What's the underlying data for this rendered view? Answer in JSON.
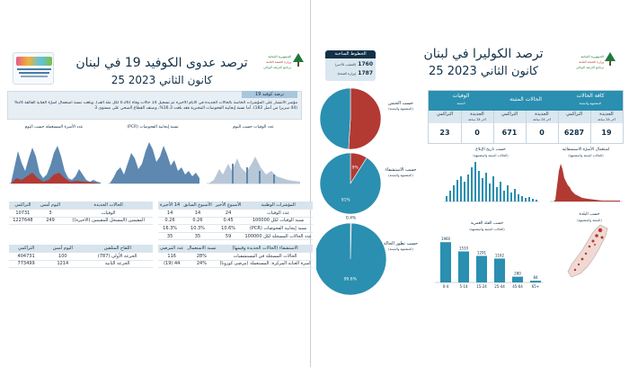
{
  "left": {
    "title": "ترصد عدوى الكوفيد 19 في لبنان",
    "date": "25 كانون الثاني 2023",
    "logo": {
      "line1": "الجمهورية اللبنانية",
      "line2": "وزارة الصحة العامة",
      "line3": "برنامج الترصد الوبائي"
    },
    "section_label": "ترصد كوفيد 19",
    "summary_text": "مؤشر الانتشار على المؤشرات الخاصة بالحالات الجديدة في الأيام الأخيرة تم تسجيل 14 حالات وفاة (0.26 لكل مئة ألف). وبلغت نسبة استعمال اسرّة العناية الفائقة 24% (44 سريرا من أصل 182). أما نسبة إيجابية الفحوصات المخبرية فقد بلغت 16.3%، وصنف القطاع الصحي على مستوى 3",
    "chart_titles": [
      "عدد الأسرة المستعملة حسب اليوم",
      "نسبة إيجابية الفحوصات (PCR)",
      "عدد الوفيات حسب اليوم"
    ],
    "table1": {
      "headers": [
        "المؤشرات الوطنية",
        "الأسبوع الأخير",
        "الأسبوع السابق",
        "14 الأخيرة"
      ],
      "rows": [
        [
          "عدد الوفيات",
          "24",
          "14",
          "14"
        ],
        [
          "نسبة الوفيات لكل 100000",
          "0.45",
          "0.26",
          "0.26"
        ],
        [
          "نسبة إيجابية الفحوصات (PCR)",
          "10.6%",
          "10.3%",
          "16.3%"
        ],
        [
          "عدد الحالات المسجلة لكل 100000",
          "59",
          "35",
          "35"
        ]
      ]
    },
    "table2": {
      "headers": [
        "الاستشفاء (الحالات الجديدة وقيمها)",
        "نسبة الاستعمال",
        "عدد المرضى"
      ],
      "rows": [
        [
          "الحالات المسجلة في المستشفيات",
          "28%",
          "116"
        ],
        [
          "أسرة العناية المركزة: المستعملة (مرضى كورونا)",
          "24%",
          "44 (19)"
        ]
      ]
    },
    "table3": {
      "headers": [
        "الحالات الجديدة",
        "اليوم أمس",
        "التراكمي"
      ],
      "rows": [
        [
          "الوفيات",
          "3",
          "10731"
        ],
        [
          "المقيمين (المسجل للمقيمين (الأخيرة))",
          "249",
          "1227648"
        ]
      ]
    },
    "table4": {
      "headers": [
        "اللقاح المتلقين",
        "اليوم أمس",
        "التراكمي"
      ],
      "rows": [
        [
          "الجرعة الأولى (787)",
          "100",
          "404731"
        ],
        [
          "الجرعة الثانية",
          "1214",
          "773499"
        ]
      ]
    }
  },
  "right": {
    "title": "ترصد الكوليرا في لبنان",
    "date": "25 كانون الثاني 2023",
    "logo": {
      "line1": "الجمهورية اللبنانية",
      "line2": "وزارة الصحة العامة",
      "line3": "برنامج الترصد الوبائي"
    },
    "hotline": {
      "title": "الخطوط الساخنة",
      "rows": [
        {
          "number": "1760",
          "label": "(الصليب الأحمر)"
        },
        {
          "number": "1787",
          "label": "(وزارة الصحة)"
        }
      ]
    },
    "kpi_headers": [
      "كافة الحالات",
      "الحالات المثبتة",
      "الوفيات"
    ],
    "kpi_subheaders": [
      "المشتبهة والمثبتة",
      "",
      "المثبتة"
    ],
    "kpi_labels": [
      "الجديدة",
      "التراكمي"
    ],
    "kpi_sublabels": [
      "آخر 24 ساعة",
      "",
      "آخر 24 ساعة",
      "",
      "آخر 24 ساعة",
      ""
    ],
    "kpi_values": [
      "19",
      "6287",
      "0",
      "671",
      "0",
      "23"
    ],
    "pies": [
      {
        "label": "حسب الجنس",
        "sublabel": "(المشتبهة والمثبتة)",
        "labels": [
          "",
          ""
        ]
      },
      {
        "label": "حسب الاستشفاء",
        "sublabel": "(المشتبهة والمثبتة)",
        "labels": [
          "9%",
          "91%"
        ]
      },
      {
        "label": "حسب تطور الحالة",
        "sublabel": "(المشتبهة والمثبتة)",
        "labels": [
          "0.4%",
          "99.6%"
        ]
      }
    ],
    "epi_titles": [
      "استعمال الأسرّة الاستشفائية",
      "حسب تاريخ الإبلاغ"
    ],
    "epi_subtitle": "(الحالات المثبتة والمشتبهة)",
    "age_chart": {
      "title": "حسب الفئة العمرية",
      "subtitle": "(الحالات المثبتة والمشتبهة)",
      "categories": [
        "0-4",
        "5-14",
        "15-24",
        "25-44",
        "45-64",
        "65+"
      ],
      "values": [
        1960,
        1510,
        1291,
        1162,
        280,
        84
      ]
    },
    "map_title": "حسب البلدة",
    "map_subtitle": "(المثبتة والمشتبهة)"
  },
  "chart_data": [
    {
      "type": "pie",
      "title": "حسب الجنس",
      "values": [
        51,
        49
      ],
      "colors": [
        "#b23a33",
        "#2a8fb0"
      ]
    },
    {
      "type": "pie",
      "title": "حسب الاستشفاء",
      "values": [
        9,
        91
      ],
      "colors": [
        "#b23a33",
        "#2a8fb0"
      ]
    },
    {
      "type": "pie",
      "title": "حسب تطور الحالة",
      "values": [
        0.4,
        99.6
      ],
      "colors": [
        "#b23a33",
        "#2a8fb0"
      ]
    },
    {
      "type": "bar",
      "title": "حسب الفئة العمرية",
      "categories": [
        "0-4",
        "5-14",
        "15-24",
        "25-44",
        "45-64",
        "65+"
      ],
      "values": [
        1960,
        1510,
        1291,
        1162,
        280,
        84
      ],
      "ylim": [
        0,
        2100
      ]
    }
  ],
  "colors": {
    "navy": "#123047",
    "teal": "#2a8fb0",
    "red": "#b23a33",
    "panel": "#dbe7ef",
    "green": "#1f7a3a"
  }
}
